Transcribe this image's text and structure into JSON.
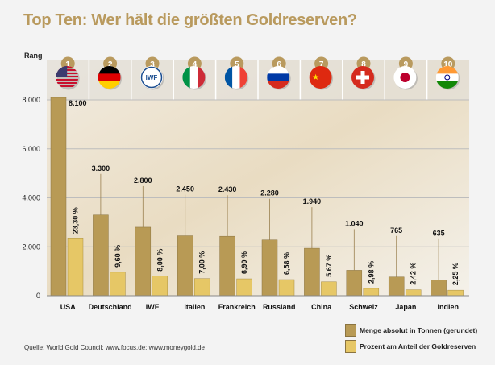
{
  "chart_data": {
    "type": "bar",
    "title": "Top Ten: Wer hält die größten Goldreserven?",
    "rank_label": "Rang",
    "categories": [
      "USA",
      "Deutschland",
      "IWF",
      "Italien",
      "Frankreich",
      "Russland",
      "China",
      "Schweiz",
      "Japan",
      "Indien"
    ],
    "ranks": [
      "1",
      "2",
      "3",
      "4",
      "5",
      "6",
      "7",
      "8",
      "9",
      "10"
    ],
    "flags": [
      "flag-usa",
      "flag-germany",
      "logo-iwf",
      "flag-italy",
      "flag-france",
      "flag-russia",
      "flag-china",
      "flag-switzerland",
      "flag-japan",
      "flag-india"
    ],
    "iwf_logo_text": "IWF",
    "series": [
      {
        "name": "Menge absolut in Tonnen (gerundet)",
        "color": "#b89a55",
        "values": [
          8100,
          3300,
          2800,
          2450,
          2430,
          2280,
          1940,
          1040,
          765,
          635
        ],
        "labels": [
          "8.100",
          "3.300",
          "2.800",
          "2.450",
          "2.430",
          "2.280",
          "1.940",
          "1.040",
          "765",
          "635"
        ]
      },
      {
        "name": "Prozent am Anteil der Goldreserven",
        "color": "#e6c766",
        "values": [
          23.3,
          9.6,
          8.0,
          7.0,
          6.9,
          6.58,
          5.67,
          2.98,
          2.42,
          2.25
        ],
        "labels": [
          "23,30 %",
          "9,60 %",
          "8,00 %",
          "7,00 %",
          "6,90 %",
          "6,58 %",
          "5,67 %",
          "2,98 %",
          "2,42 %",
          "2,25 %"
        ]
      }
    ],
    "yticks": [
      "0",
      "2.000",
      "4.000",
      "6.000",
      "8.000"
    ],
    "ytick_values": [
      0,
      2000,
      4000,
      6000,
      8000
    ],
    "ylim": [
      0,
      8000
    ],
    "grid": true,
    "legend_position": "bottom-right"
  },
  "source": "Quelle: World Gold Council; www.focus.de; www.moneygold.de"
}
